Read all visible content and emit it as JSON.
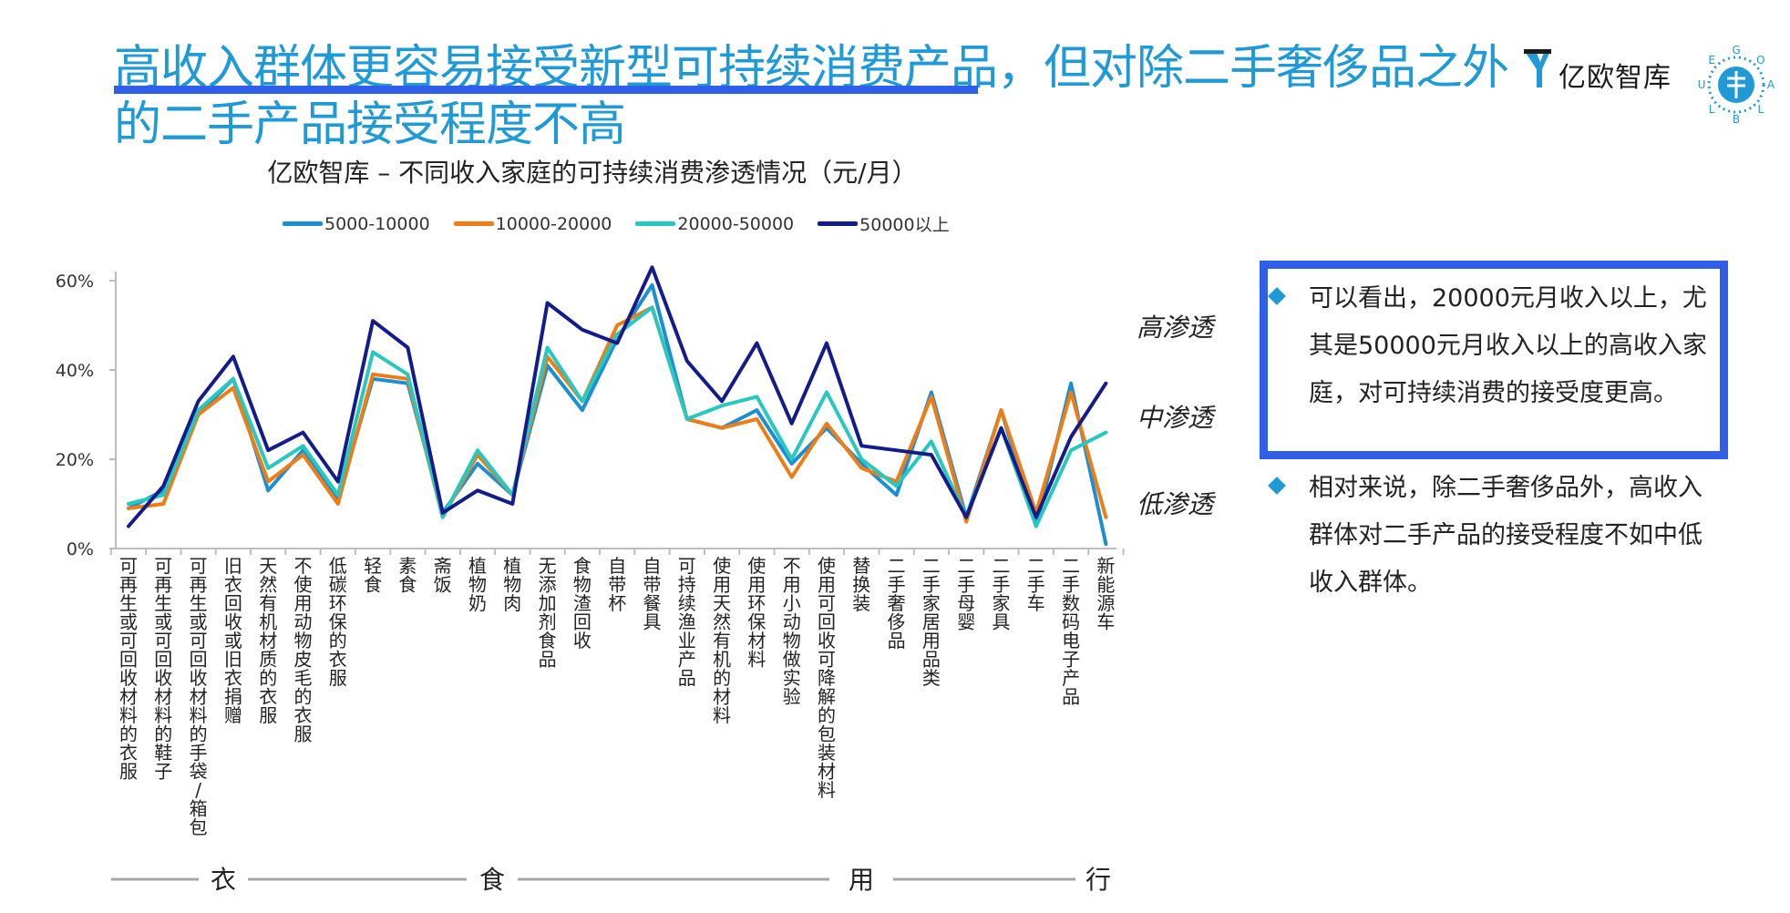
{
  "header": {
    "title": "高收入群体更容易接受新型可持续消费产品，但对除二手奢侈品之外的二手产品接受程度不高"
  },
  "logo": {
    "text": "亿欧智库",
    "emblem_letters": [
      "G",
      "O",
      "A",
      "L",
      "B",
      "L",
      "U",
      "E"
    ]
  },
  "chart_data": {
    "type": "line",
    "title": "亿欧智库 – 不同收入家庭的可持续消费渗透情况（元/月）",
    "xlabel": "",
    "ylabel": "",
    "ylim": [
      0,
      60
    ],
    "y_ticks": [
      "0%",
      "20%",
      "40%",
      "60%"
    ],
    "y_tick_values": [
      0,
      20,
      40,
      60
    ],
    "grid": false,
    "legend_position": "top",
    "categories": [
      "可再生或可回收材料的衣服",
      "可再生或可回收材料的鞋子",
      "可再生或可回收材料的手袋/箱包",
      "旧衣回收或旧衣捐赠",
      "天然有机材质的衣服",
      "不使用动物皮毛的衣服",
      "低碳环保的衣服",
      "轻食",
      "素食",
      "斋饭",
      "植物奶",
      "植物肉",
      "无添加剂食品",
      "食物渣回收",
      "自带杯",
      "自带餐具",
      "可持续渔业产品",
      "使用天然有机的材料",
      "使用环保材料",
      "不用小动物做实验",
      "使用可回收可降解的包装材料",
      "替换装",
      "二手奢侈品",
      "二手家居用品类",
      "二手母婴",
      "二手家具",
      "二手车",
      "二手数码电子产品",
      "新能源车"
    ],
    "series": [
      {
        "name": "5000-10000",
        "color": "#1a8fd4",
        "values": [
          9,
          13,
          30,
          38,
          13,
          22,
          11,
          38,
          37,
          8,
          19,
          12,
          41,
          31,
          47,
          59,
          29,
          27,
          31,
          19,
          27,
          19,
          12,
          35,
          7,
          31,
          5,
          37,
          1
        ]
      },
      {
        "name": "10000-20000",
        "color": "#f07d14",
        "values": [
          9,
          10,
          30,
          36,
          15,
          21,
          10,
          39,
          38,
          7,
          21,
          12,
          43,
          33,
          50,
          54,
          29,
          27,
          29,
          16,
          28,
          18,
          15,
          34,
          6,
          31,
          8,
          35,
          7
        ]
      },
      {
        "name": "20000-50000",
        "color": "#27c8c0",
        "values": [
          10,
          12,
          31,
          38,
          18,
          23,
          12,
          44,
          39,
          7,
          22,
          12,
          45,
          33,
          48,
          54,
          29,
          32,
          34,
          20,
          35,
          20,
          14,
          24,
          7,
          27,
          5,
          22,
          26
        ]
      },
      {
        "name": "50000以上",
        "color": "#141c8a",
        "values": [
          5,
          14,
          33,
          43,
          22,
          26,
          15,
          51,
          45,
          8,
          13,
          10,
          55,
          49,
          46,
          63,
          42,
          33,
          46,
          28,
          46,
          23,
          22,
          21,
          7,
          27,
          7,
          25,
          37
        ]
      }
    ],
    "groups": [
      {
        "label": "衣",
        "start": 0,
        "end": 6
      },
      {
        "label": "食",
        "start": 7,
        "end": 15
      },
      {
        "label": "用",
        "start": 16,
        "end": 21
      },
      {
        "label": "行",
        "start": 22,
        "end": 28
      }
    ],
    "levels": [
      "高渗透",
      "中渗透",
      "低渗透"
    ]
  },
  "notes": [
    "可以看出，20000元月收入以上，尤其是50000元月收入以上的高收入家庭，对可持续消费的接受度更高。",
    "相对来说，除二手奢侈品外，高收入群体对二手产品的接受程度不如中低收入群体。"
  ],
  "colors": {
    "title": "#1f9ad6",
    "title_underline": "#2f5fe8",
    "highlight_box": "#2f5fe8",
    "bullet": "#1f9ad6"
  }
}
